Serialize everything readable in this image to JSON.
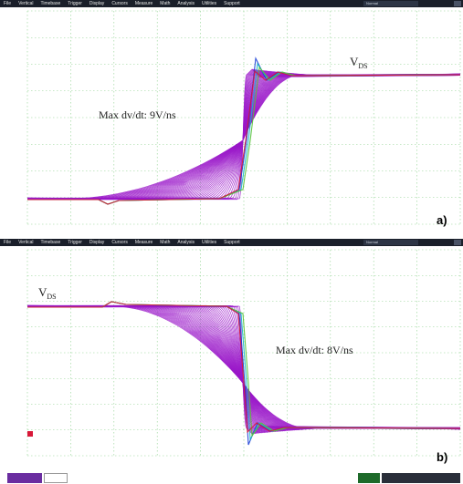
{
  "menu": {
    "items": [
      "File",
      "Vertical",
      "Timebase",
      "Trigger",
      "Display",
      "Cursors",
      "Measure",
      "Math",
      "Analysis",
      "Utilities",
      "Support"
    ],
    "status": "Normal"
  },
  "panel_a": {
    "label": "a)",
    "signal_label": "V",
    "signal_sub": "DS",
    "annotation": "Max dv/dt: 9V/ns"
  },
  "panel_b": {
    "label": "b)",
    "signal_label": "V",
    "signal_sub": "DS",
    "annotation": "Max dv/dt: 8V/ns"
  },
  "colors": {
    "trace_main": "#9a18c9",
    "trace_blue": "#1b3fd6",
    "trace_cyan": "#18b8c8",
    "trace_green": "#58c238",
    "trace_red": "#d81838",
    "grid": "#8fd28f",
    "menubar": "#1a1f2a"
  }
}
